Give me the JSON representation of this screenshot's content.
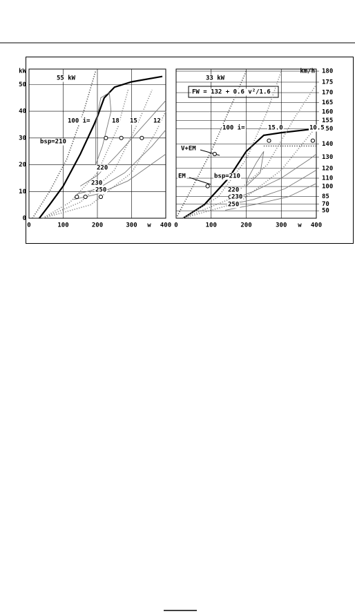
{
  "chart_data": [
    {
      "type": "line",
      "ylabel": "kW",
      "xlabel": "w",
      "xlim": [
        0,
        400
      ],
      "ylim": [
        0,
        55
      ],
      "xticks": [
        0,
        100,
        200,
        300,
        400
      ],
      "yticks": [
        0,
        10,
        20,
        30,
        40,
        50
      ],
      "grid": true,
      "annotations": [
        "55 kW",
        "100 i=",
        "18",
        "15",
        "12",
        "bsp=210",
        "220",
        "230",
        "250"
      ],
      "series": [
        {
          "color": "#000000",
          "style": "solid",
          "x": [
            30,
            60,
            100,
            150,
            190,
            200,
            220,
            250,
            300,
            390
          ],
          "values": [
            0,
            5,
            12,
            24,
            35,
            38,
            45,
            49,
            51,
            53
          ]
        },
        {
          "color": "#444444",
          "style": "dotted",
          "x": [
            10,
            60,
            110,
            160,
            195
          ],
          "values": [
            0,
            10,
            22,
            40,
            55
          ]
        },
        {
          "color": "#888888",
          "style": "dotted",
          "x": [
            40,
            120,
            200,
            260,
            290
          ],
          "values": [
            0,
            6,
            17,
            34,
            48
          ]
        },
        {
          "color": "#888888",
          "style": "dotted",
          "x": [
            40,
            150,
            250,
            320,
            360
          ],
          "values": [
            0,
            6,
            18,
            36,
            48
          ]
        },
        {
          "color": "#888888",
          "style": "dotted",
          "x": [
            40,
            180,
            300,
            370,
            400
          ],
          "values": [
            0,
            5,
            17,
            32,
            40
          ]
        },
        {
          "color": "#777777",
          "style": "solid",
          "x": [
            195,
            215,
            240,
            235,
            210,
            195,
            195
          ],
          "values": [
            20,
            27,
            40,
            47,
            45,
            35,
            20
          ]
        },
        {
          "color": "#777777",
          "style": "solid",
          "x": [
            150,
            200,
            260,
            330,
            400
          ],
          "values": [
            12,
            16,
            24,
            34,
            44
          ]
        },
        {
          "color": "#777777",
          "style": "solid",
          "x": [
            140,
            200,
            280,
            360,
            400
          ],
          "values": [
            9,
            11,
            17,
            27,
            33
          ]
        },
        {
          "color": "#777777",
          "style": "solid",
          "x": [
            130,
            200,
            290,
            400
          ],
          "values": [
            7,
            9,
            14,
            24
          ]
        },
        {
          "color": "#000000",
          "style": "marker",
          "x": [
            225,
            270,
            330,
            140,
            165,
            210
          ],
          "values": [
            30,
            30,
            30,
            8,
            8,
            8
          ]
        }
      ]
    },
    {
      "type": "line",
      "xlabel": "w",
      "y2label": "km/h",
      "xlim": [
        0,
        400
      ],
      "ylim": [
        0,
        55
      ],
      "xticks": [
        0,
        100,
        200,
        300,
        400
      ],
      "grid": true,
      "y2ticks": [
        50,
        70,
        85,
        100,
        110,
        120,
        130,
        140,
        150,
        155,
        160,
        165,
        170,
        175,
        180
      ],
      "annotations": [
        "33 kW",
        "FW = 132 + 0.6 v²/1.6",
        "100 i=",
        "15.0",
        "10.5",
        "V+EM",
        "EM",
        "bsp=210",
        "220",
        "230",
        "250"
      ],
      "series": [
        {
          "color": "#000000",
          "style": "solid",
          "x": [
            20,
            80,
            150,
            200,
            250,
            300,
            400
          ],
          "values": [
            0,
            5,
            15,
            25,
            31,
            32,
            33.5
          ]
        },
        {
          "color": "#444444",
          "style": "dotted",
          "x": [
            0,
            100,
            200
          ],
          "values": [
            0,
            25,
            55
          ]
        },
        {
          "color": "#444444",
          "style": "dotted",
          "x": [
            250,
            400
          ],
          "values": [
            27,
            27
          ]
        },
        {
          "color": "#888888",
          "style": "dotted",
          "x": [
            20,
            120,
            200,
            260,
            300
          ],
          "values": [
            0,
            8,
            22,
            40,
            55
          ]
        },
        {
          "color": "#888888",
          "style": "dotted",
          "x": [
            20,
            150,
            260,
            340,
            400
          ],
          "values": [
            0,
            7,
            20,
            38,
            50
          ]
        },
        {
          "color": "#888888",
          "style": "dotted",
          "x": [
            20,
            180,
            300,
            380,
            400
          ],
          "values": [
            0,
            6,
            18,
            31,
            34
          ]
        },
        {
          "color": "#777777",
          "style": "solid",
          "x": [
            200,
            240,
            250,
            230,
            205,
            200
          ],
          "values": [
            12,
            17,
            25,
            21,
            15,
            12
          ]
        },
        {
          "color": "#777777",
          "style": "solid",
          "x": [
            160,
            220,
            300,
            380,
            400
          ],
          "values": [
            7,
            10,
            15,
            22,
            24
          ]
        },
        {
          "color": "#777777",
          "style": "solid",
          "x": [
            150,
            220,
            310,
            400
          ],
          "values": [
            5,
            7,
            11,
            18
          ]
        },
        {
          "color": "#777777",
          "style": "solid",
          "x": [
            140,
            220,
            320,
            400
          ],
          "values": [
            3,
            5,
            8,
            13
          ]
        },
        {
          "color": "#000000",
          "style": "marker",
          "x": [
            110,
            90,
            155,
            265,
            390
          ],
          "values": [
            24,
            12,
            8,
            29,
            29
          ]
        }
      ]
    }
  ]
}
